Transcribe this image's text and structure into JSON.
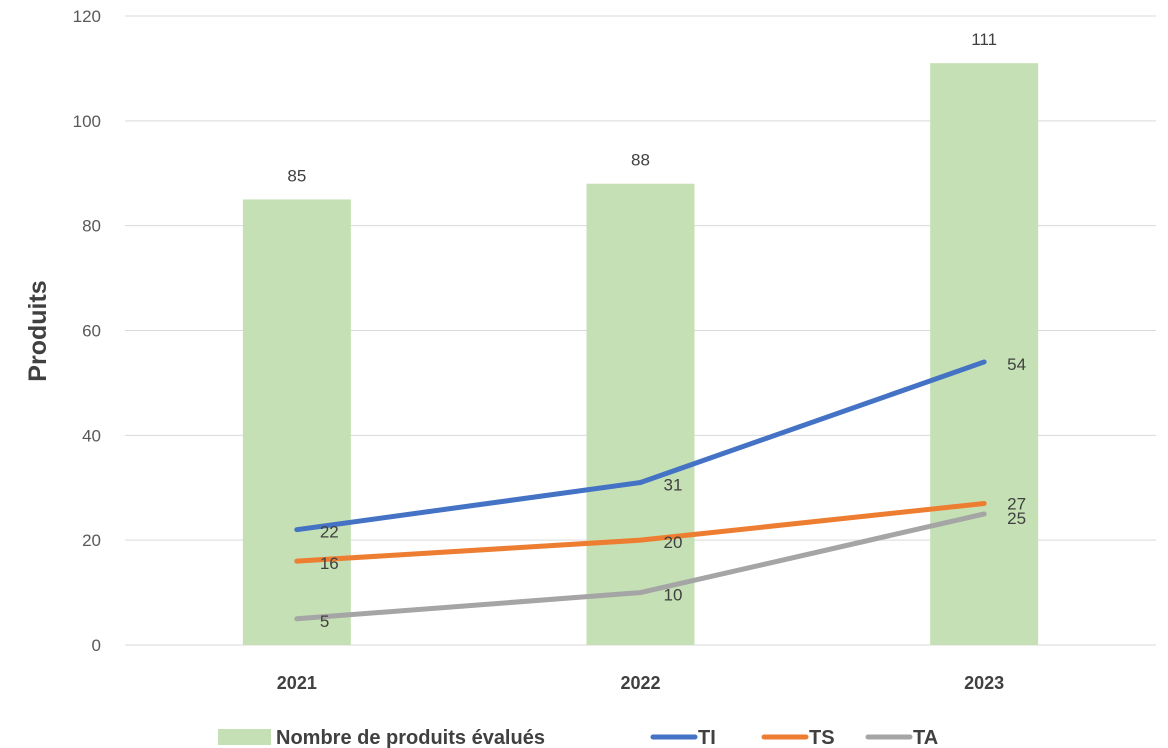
{
  "chart_data": {
    "type": "bar",
    "categories": [
      "2021",
      "2022",
      "2023"
    ],
    "ylabel": "Produits",
    "ylim": [
      0,
      120
    ],
    "yticks": [
      0,
      20,
      40,
      60,
      80,
      100,
      120
    ],
    "grid": true,
    "legend_position": "bottom",
    "bars": {
      "name": "Nombre de produits évalués",
      "values": [
        85,
        88,
        111
      ],
      "color": "#c5e0b4"
    },
    "lines": [
      {
        "name": "TI",
        "values": [
          22,
          31,
          54
        ],
        "color": "#4472c4"
      },
      {
        "name": "TS",
        "values": [
          16,
          20,
          27
        ],
        "color": "#ed7d31"
      },
      {
        "name": "TA",
        "values": [
          5,
          10,
          25
        ],
        "color": "#a5a5a5"
      }
    ]
  }
}
